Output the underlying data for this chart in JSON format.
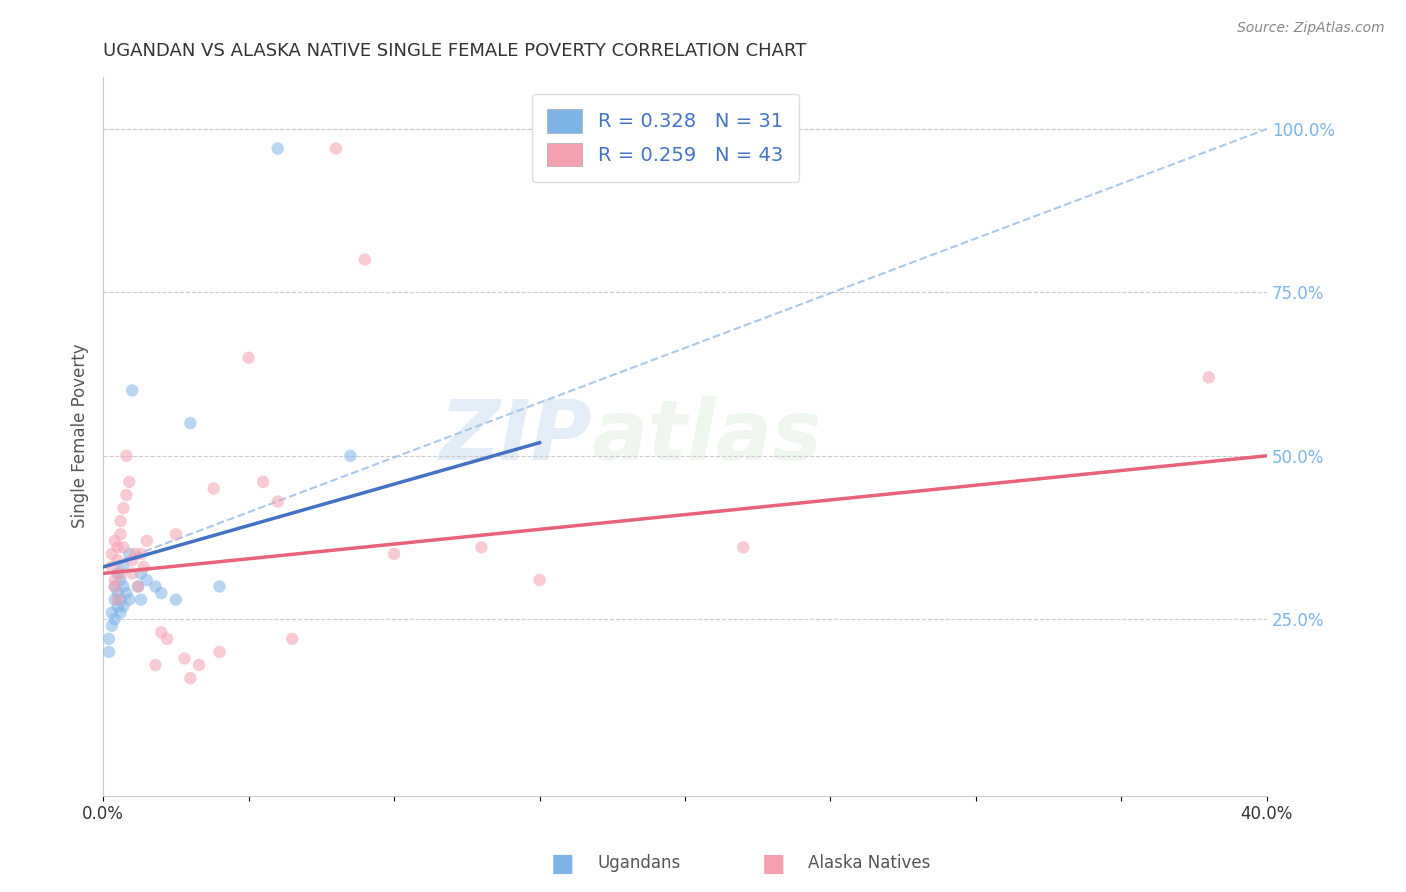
{
  "title": "UGANDAN VS ALASKA NATIVE SINGLE FEMALE POVERTY CORRELATION CHART",
  "source": "Source: ZipAtlas.com",
  "ylabel": "Single Female Poverty",
  "watermark": "ZIPatlas",
  "legend_blue_r": "R = 0.328",
  "legend_blue_n": "N = 31",
  "legend_pink_r": "R = 0.259",
  "legend_pink_n": "N = 43",
  "right_yticks": [
    "100.0%",
    "75.0%",
    "50.0%",
    "25.0%"
  ],
  "right_ytick_vals": [
    1.0,
    0.75,
    0.5,
    0.25
  ],
  "xlim": [
    0.0,
    0.4
  ],
  "ylim": [
    -0.02,
    1.08
  ],
  "blue_scatter": [
    [
      0.002,
      0.2
    ],
    [
      0.002,
      0.22
    ],
    [
      0.003,
      0.24
    ],
    [
      0.003,
      0.26
    ],
    [
      0.004,
      0.3
    ],
    [
      0.004,
      0.25
    ],
    [
      0.004,
      0.28
    ],
    [
      0.005,
      0.32
    ],
    [
      0.005,
      0.27
    ],
    [
      0.005,
      0.29
    ],
    [
      0.006,
      0.26
    ],
    [
      0.006,
      0.28
    ],
    [
      0.006,
      0.31
    ],
    [
      0.007,
      0.3
    ],
    [
      0.007,
      0.27
    ],
    [
      0.007,
      0.33
    ],
    [
      0.008,
      0.29
    ],
    [
      0.009,
      0.35
    ],
    [
      0.009,
      0.28
    ],
    [
      0.01,
      0.6
    ],
    [
      0.012,
      0.3
    ],
    [
      0.013,
      0.32
    ],
    [
      0.013,
      0.28
    ],
    [
      0.015,
      0.31
    ],
    [
      0.018,
      0.3
    ],
    [
      0.02,
      0.29
    ],
    [
      0.025,
      0.28
    ],
    [
      0.03,
      0.55
    ],
    [
      0.04,
      0.3
    ],
    [
      0.06,
      0.97
    ],
    [
      0.085,
      0.5
    ]
  ],
  "pink_scatter": [
    [
      0.003,
      0.33
    ],
    [
      0.003,
      0.35
    ],
    [
      0.004,
      0.3
    ],
    [
      0.004,
      0.37
    ],
    [
      0.004,
      0.31
    ],
    [
      0.005,
      0.34
    ],
    [
      0.005,
      0.28
    ],
    [
      0.005,
      0.36
    ],
    [
      0.006,
      0.32
    ],
    [
      0.006,
      0.4
    ],
    [
      0.006,
      0.38
    ],
    [
      0.007,
      0.36
    ],
    [
      0.007,
      0.42
    ],
    [
      0.008,
      0.5
    ],
    [
      0.008,
      0.44
    ],
    [
      0.009,
      0.46
    ],
    [
      0.01,
      0.34
    ],
    [
      0.01,
      0.32
    ],
    [
      0.011,
      0.35
    ],
    [
      0.012,
      0.3
    ],
    [
      0.013,
      0.35
    ],
    [
      0.014,
      0.33
    ],
    [
      0.015,
      0.37
    ],
    [
      0.018,
      0.18
    ],
    [
      0.02,
      0.23
    ],
    [
      0.022,
      0.22
    ],
    [
      0.025,
      0.38
    ],
    [
      0.028,
      0.19
    ],
    [
      0.03,
      0.16
    ],
    [
      0.033,
      0.18
    ],
    [
      0.038,
      0.45
    ],
    [
      0.04,
      0.2
    ],
    [
      0.05,
      0.65
    ],
    [
      0.055,
      0.46
    ],
    [
      0.06,
      0.43
    ],
    [
      0.065,
      0.22
    ],
    [
      0.08,
      0.97
    ],
    [
      0.09,
      0.8
    ],
    [
      0.1,
      0.35
    ],
    [
      0.13,
      0.36
    ],
    [
      0.15,
      0.31
    ],
    [
      0.22,
      0.36
    ],
    [
      0.38,
      0.62
    ]
  ],
  "blue_line_x": [
    0.0,
    0.15
  ],
  "blue_line_y": [
    0.33,
    0.52
  ],
  "dash_line_x": [
    0.0,
    0.4
  ],
  "dash_line_y": [
    0.33,
    1.0
  ],
  "pink_line_x": [
    0.0,
    0.4
  ],
  "pink_line_y": [
    0.32,
    0.5
  ],
  "background_color": "#ffffff",
  "scatter_alpha": 0.55,
  "scatter_size": 80,
  "blue_color": "#7EB3E8",
  "pink_color": "#F4A0B0",
  "blue_line_color": "#4472c4",
  "pink_line_color": "#E8637A",
  "dash_color": "#aac8e8",
  "grid_color": "#cccccc",
  "title_color": "#333333",
  "right_axis_color": "#7EB3E8",
  "xtick_positions": [
    0.0,
    0.05,
    0.1,
    0.15,
    0.2,
    0.25,
    0.3,
    0.35,
    0.4
  ],
  "xtick_show_labels": [
    true,
    false,
    false,
    false,
    false,
    false,
    false,
    false,
    true
  ]
}
